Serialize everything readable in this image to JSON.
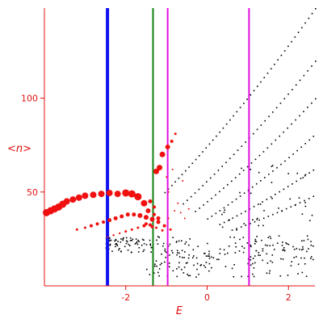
{
  "chart_data": {
    "type": "scatter",
    "title": "",
    "xlabel": "E",
    "ylabel_parts": [
      "<",
      "n",
      ">"
    ],
    "xlim": [
      -4.0,
      2.65
    ],
    "ylim": [
      0,
      148
    ],
    "x_ticks": [
      {
        "value": -2,
        "label": "-2"
      },
      {
        "value": 0,
        "label": "0"
      },
      {
        "value": 2,
        "label": "2"
      }
    ],
    "y_ticks": [
      {
        "value": 50,
        "label": "50"
      },
      {
        "value": 100,
        "label": "100"
      }
    ],
    "vertical_lines": [
      {
        "name": "blue-line",
        "x": -2.45,
        "color": "#1010f0",
        "width": 4
      },
      {
        "name": "green-line",
        "x": -1.33,
        "color": "#108010",
        "width": 2
      },
      {
        "name": "magenta-line-left",
        "x": -0.97,
        "color": "#e010e0",
        "width": 2
      },
      {
        "name": "magenta-line-right",
        "x": 1.03,
        "color": "#e010e0",
        "width": 2
      }
    ],
    "red_series": [
      {
        "x": -3.95,
        "y": 39,
        "r": 4.5
      },
      {
        "x": -3.85,
        "y": 40,
        "r": 4.5
      },
      {
        "x": -3.75,
        "y": 41,
        "r": 4.5
      },
      {
        "x": -3.65,
        "y": 42,
        "r": 4.5
      },
      {
        "x": -3.55,
        "y": 43.5,
        "r": 4.5
      },
      {
        "x": -3.45,
        "y": 45,
        "r": 4
      },
      {
        "x": -3.3,
        "y": 46,
        "r": 4
      },
      {
        "x": -3.15,
        "y": 47,
        "r": 4
      },
      {
        "x": -3.0,
        "y": 48,
        "r": 4
      },
      {
        "x": -2.8,
        "y": 48.5,
        "r": 4
      },
      {
        "x": -2.6,
        "y": 49,
        "r": 4
      },
      {
        "x": -2.4,
        "y": 49.5,
        "r": 4
      },
      {
        "x": -2.2,
        "y": 49,
        "r": 4
      },
      {
        "x": -2.0,
        "y": 49.5,
        "r": 4.5
      },
      {
        "x": -1.85,
        "y": 49,
        "r": 4.5
      },
      {
        "x": -1.7,
        "y": 47.5,
        "r": 4.5
      },
      {
        "x": -1.55,
        "y": 44,
        "r": 4
      },
      {
        "x": -1.45,
        "y": 40,
        "r": 3
      },
      {
        "x": -3.2,
        "y": 30,
        "r": 1.5
      },
      {
        "x": -3.0,
        "y": 31,
        "r": 1.5
      },
      {
        "x": -2.85,
        "y": 32,
        "r": 2
      },
      {
        "x": -2.7,
        "y": 33,
        "r": 2
      },
      {
        "x": -2.55,
        "y": 34,
        "r": 2
      },
      {
        "x": -2.4,
        "y": 35,
        "r": 2.5
      },
      {
        "x": -2.25,
        "y": 36,
        "r": 2.5
      },
      {
        "x": -2.1,
        "y": 37,
        "r": 2.5
      },
      {
        "x": -1.95,
        "y": 38,
        "r": 2.5
      },
      {
        "x": -1.8,
        "y": 38,
        "r": 2.5
      },
      {
        "x": -1.65,
        "y": 37.5,
        "r": 3
      },
      {
        "x": -1.5,
        "y": 36.5,
        "r": 3
      },
      {
        "x": -1.35,
        "y": 35.5,
        "r": 3
      },
      {
        "x": -1.2,
        "y": 34,
        "r": 2.5
      },
      {
        "x": -1.05,
        "y": 32,
        "r": 2
      },
      {
        "x": -0.9,
        "y": 30,
        "r": 1.5
      },
      {
        "x": -2.45,
        "y": 26,
        "r": 1
      },
      {
        "x": -2.3,
        "y": 27,
        "r": 1.2
      },
      {
        "x": -2.15,
        "y": 28,
        "r": 1.2
      },
      {
        "x": -2.0,
        "y": 29,
        "r": 1.5
      },
      {
        "x": -1.85,
        "y": 30,
        "r": 1.5
      },
      {
        "x": -1.7,
        "y": 31,
        "r": 1.5
      },
      {
        "x": -1.55,
        "y": 32,
        "r": 2
      },
      {
        "x": -1.4,
        "y": 32.5,
        "r": 2
      },
      {
        "x": -1.25,
        "y": 31,
        "r": 1.5
      },
      {
        "x": -1.1,
        "y": 29.5,
        "r": 1.5
      },
      {
        "x": -1.25,
        "y": 61,
        "r": 3.5
      },
      {
        "x": -1.17,
        "y": 63,
        "r": 3.5
      },
      {
        "x": -1.1,
        "y": 70,
        "r": 3.5
      },
      {
        "x": -0.97,
        "y": 74,
        "r": 3
      },
      {
        "x": -0.87,
        "y": 77,
        "r": 2
      },
      {
        "x": -0.78,
        "y": 81,
        "r": 1.5
      },
      {
        "x": -1.4,
        "y": 45,
        "r": 2.5
      },
      {
        "x": -1.3,
        "y": 42,
        "r": 2
      },
      {
        "x": -1.3,
        "y": 38,
        "r": 2
      },
      {
        "x": -1.2,
        "y": 36,
        "r": 2.5
      },
      {
        "x": -1.5,
        "y": 33,
        "r": 2
      },
      {
        "x": -1.35,
        "y": 31.5,
        "r": 2
      },
      {
        "x": -0.95,
        "y": 36,
        "r": 1
      },
      {
        "x": -0.8,
        "y": 40,
        "r": 1
      },
      {
        "x": -0.72,
        "y": 44,
        "r": 1
      },
      {
        "x": -0.65,
        "y": 39,
        "r": 1
      },
      {
        "x": -0.55,
        "y": 36,
        "r": 1
      },
      {
        "x": -0.85,
        "y": 62,
        "r": 1
      },
      {
        "x": -1.0,
        "y": 58,
        "r": 1
      },
      {
        "x": -0.95,
        "y": 50,
        "r": 1
      },
      {
        "x": -0.6,
        "y": 56,
        "r": 1
      },
      {
        "x": -0.45,
        "y": 41,
        "r": 1
      }
    ]
  }
}
